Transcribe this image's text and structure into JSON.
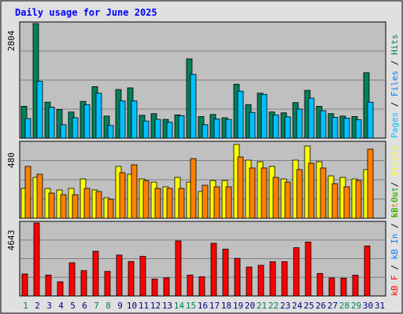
{
  "title": "Daily usage for June 2025",
  "colors": {
    "background": "#e0e0e0",
    "plot_bg": "#c0c0c0",
    "title": "#0000ff",
    "hits": "#00805c",
    "files": "#0080ff",
    "pages": "#00c0ff",
    "visits": "#ffff00",
    "sites": "#ff8000",
    "kbin": "#0080ff",
    "kbout": "#00c000",
    "kbf": "#ff0000",
    "weekend_day": "#00805c",
    "weekday": "#00007f"
  },
  "panels": {
    "top": {
      "max_label": "2804",
      "legend": [
        "Pages",
        "Files",
        "Hits"
      ]
    },
    "middle": {
      "max_label": "480",
      "legend": [
        "Sites",
        "Visits"
      ]
    },
    "bottom": {
      "max_label": "4643",
      "legend": [
        "kB F",
        "kB In",
        "kB Out"
      ]
    }
  },
  "legend_separator": " / ",
  "chart_data": [
    {
      "type": "bar",
      "title": "Daily usage for June 2025",
      "categories": [
        "1",
        "2",
        "3",
        "4",
        "5",
        "6",
        "7",
        "8",
        "9",
        "10",
        "11",
        "12",
        "13",
        "14",
        "15",
        "16",
        "17",
        "18",
        "19",
        "20",
        "21",
        "22",
        "23",
        "24",
        "25",
        "26",
        "27",
        "28",
        "29",
        "30",
        "31"
      ],
      "ylim": [
        0,
        2804
      ],
      "series": [
        {
          "name": "Hits",
          "values": [
            780,
            2804,
            880,
            700,
            640,
            900,
            1260,
            540,
            1190,
            1230,
            560,
            600,
            460,
            570,
            1940,
            530,
            580,
            500,
            1320,
            820,
            1100,
            640,
            620,
            870,
            1170,
            780,
            600,
            540,
            530,
            1600,
            0
          ]
        },
        {
          "name": "Pages",
          "values": [
            480,
            1390,
            760,
            330,
            500,
            820,
            1100,
            310,
            910,
            910,
            420,
            460,
            390,
            550,
            1560,
            330,
            470,
            460,
            1150,
            630,
            1070,
            570,
            520,
            710,
            980,
            670,
            510,
            490,
            450,
            880,
            0
          ]
        }
      ]
    },
    {
      "type": "bar",
      "categories": [
        "1",
        "2",
        "3",
        "4",
        "5",
        "6",
        "7",
        "8",
        "9",
        "10",
        "11",
        "12",
        "13",
        "14",
        "15",
        "16",
        "17",
        "18",
        "19",
        "20",
        "21",
        "22",
        "23",
        "24",
        "25",
        "26",
        "27",
        "28",
        "29",
        "30",
        "31"
      ],
      "ylim": [
        0,
        480
      ],
      "series": [
        {
          "name": "Visits",
          "values": [
            190,
            260,
            190,
            180,
            190,
            250,
            180,
            130,
            330,
            280,
            250,
            230,
            200,
            260,
            230,
            170,
            240,
            240,
            470,
            370,
            360,
            330,
            250,
            370,
            460,
            360,
            270,
            260,
            250,
            310,
            0
          ]
        },
        {
          "name": "Sites",
          "values": [
            330,
            280,
            160,
            150,
            150,
            190,
            170,
            120,
            290,
            340,
            240,
            190,
            190,
            190,
            380,
            210,
            200,
            200,
            390,
            320,
            320,
            260,
            230,
            310,
            350,
            320,
            220,
            200,
            240,
            440,
            0
          ]
        }
      ]
    },
    {
      "type": "bar",
      "categories": [
        "1",
        "2",
        "3",
        "4",
        "5",
        "6",
        "7",
        "8",
        "9",
        "10",
        "11",
        "12",
        "13",
        "14",
        "15",
        "16",
        "17",
        "18",
        "19",
        "20",
        "21",
        "22",
        "23",
        "24",
        "25",
        "26",
        "27",
        "28",
        "29",
        "30",
        "31"
      ],
      "ylim": [
        0,
        4643
      ],
      "series": [
        {
          "name": "kB F",
          "values": [
            1400,
            4643,
            1330,
            900,
            2110,
            1610,
            2840,
            1560,
            2600,
            2190,
            2520,
            1080,
            1150,
            3500,
            1330,
            1220,
            3350,
            2980,
            2390,
            1840,
            1950,
            2180,
            2180,
            3070,
            3430,
            1430,
            1150,
            1130,
            1320,
            3180,
            0
          ]
        }
      ]
    }
  ],
  "x_labels": [
    "1",
    "2",
    "3",
    "4",
    "5",
    "6",
    "7",
    "8",
    "9",
    "10",
    "11",
    "12",
    "13",
    "14",
    "15",
    "16",
    "17",
    "18",
    "19",
    "20",
    "21",
    "22",
    "23",
    "24",
    "25",
    "26",
    "27",
    "28",
    "29",
    "30",
    "31"
  ],
  "weekend_days": [
    1,
    7,
    8,
    14,
    15,
    21,
    22,
    28,
    29
  ]
}
